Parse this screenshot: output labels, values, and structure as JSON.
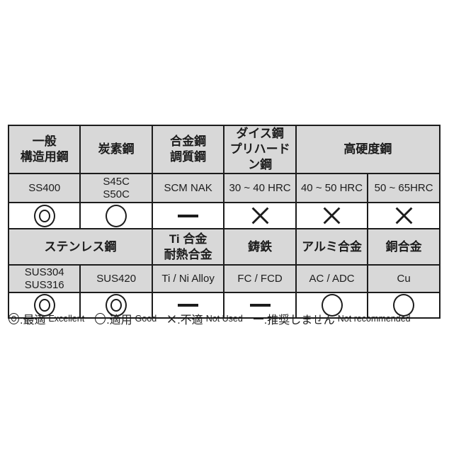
{
  "colors": {
    "background": "#ffffff",
    "header_cell_bg": "#d8d8d8",
    "symbol_cell_bg": "#ffffff",
    "border": "#1c1c1c",
    "text": "#1c1c1c"
  },
  "symbols": {
    "excellent": "◎",
    "good": "○",
    "not_used": "×",
    "not_recommended": "ー"
  },
  "table": {
    "sections": [
      {
        "headers": [
          {
            "label": "一般\n構造用鋼"
          },
          {
            "label": "炭素鋼"
          },
          {
            "label": "合金鋼\n調質鋼"
          },
          {
            "label": "ダイス鋼\nプリハードン鋼"
          },
          {
            "label": "高硬度鋼"
          }
        ],
        "grades": [
          "SS400",
          "S45C\nS50C",
          "SCM NAK",
          "30 ~ 40 HRC",
          "40 ~ 50 HRC",
          "50 ~ 65HRC"
        ],
        "ratings": [
          "excellent",
          "good",
          "not_recommended",
          "not_used",
          "not_used",
          "not_used"
        ]
      },
      {
        "headers": [
          {
            "label": "ステンレス鋼"
          },
          {
            "label": "Ti 合金\n耐熱合金"
          },
          {
            "label": "鋳鉄"
          },
          {
            "label": "アルミ合金"
          },
          {
            "label": "銅合金"
          }
        ],
        "grades": [
          "SUS304\nSUS316",
          "SUS420",
          "Ti / Ni Alloy",
          "FC / FCD",
          "AC / ADC",
          "Cu"
        ],
        "ratings": [
          "excellent",
          "excellent",
          "not_recommended",
          "not_recommended",
          "good",
          "good"
        ]
      }
    ]
  },
  "legend": {
    "items": [
      {
        "symbol": "excellent",
        "jp_label": ":最適",
        "en_label": "Excellent"
      },
      {
        "symbol": "good",
        "jp_label": ":適用",
        "en_label": "Good"
      },
      {
        "symbol": "not_used",
        "jp_label": ":不適",
        "en_label": "Not Used"
      },
      {
        "symbol": "not_recommended",
        "jp_label": ":推奨しません",
        "en_label": "Not recommended"
      }
    ]
  }
}
